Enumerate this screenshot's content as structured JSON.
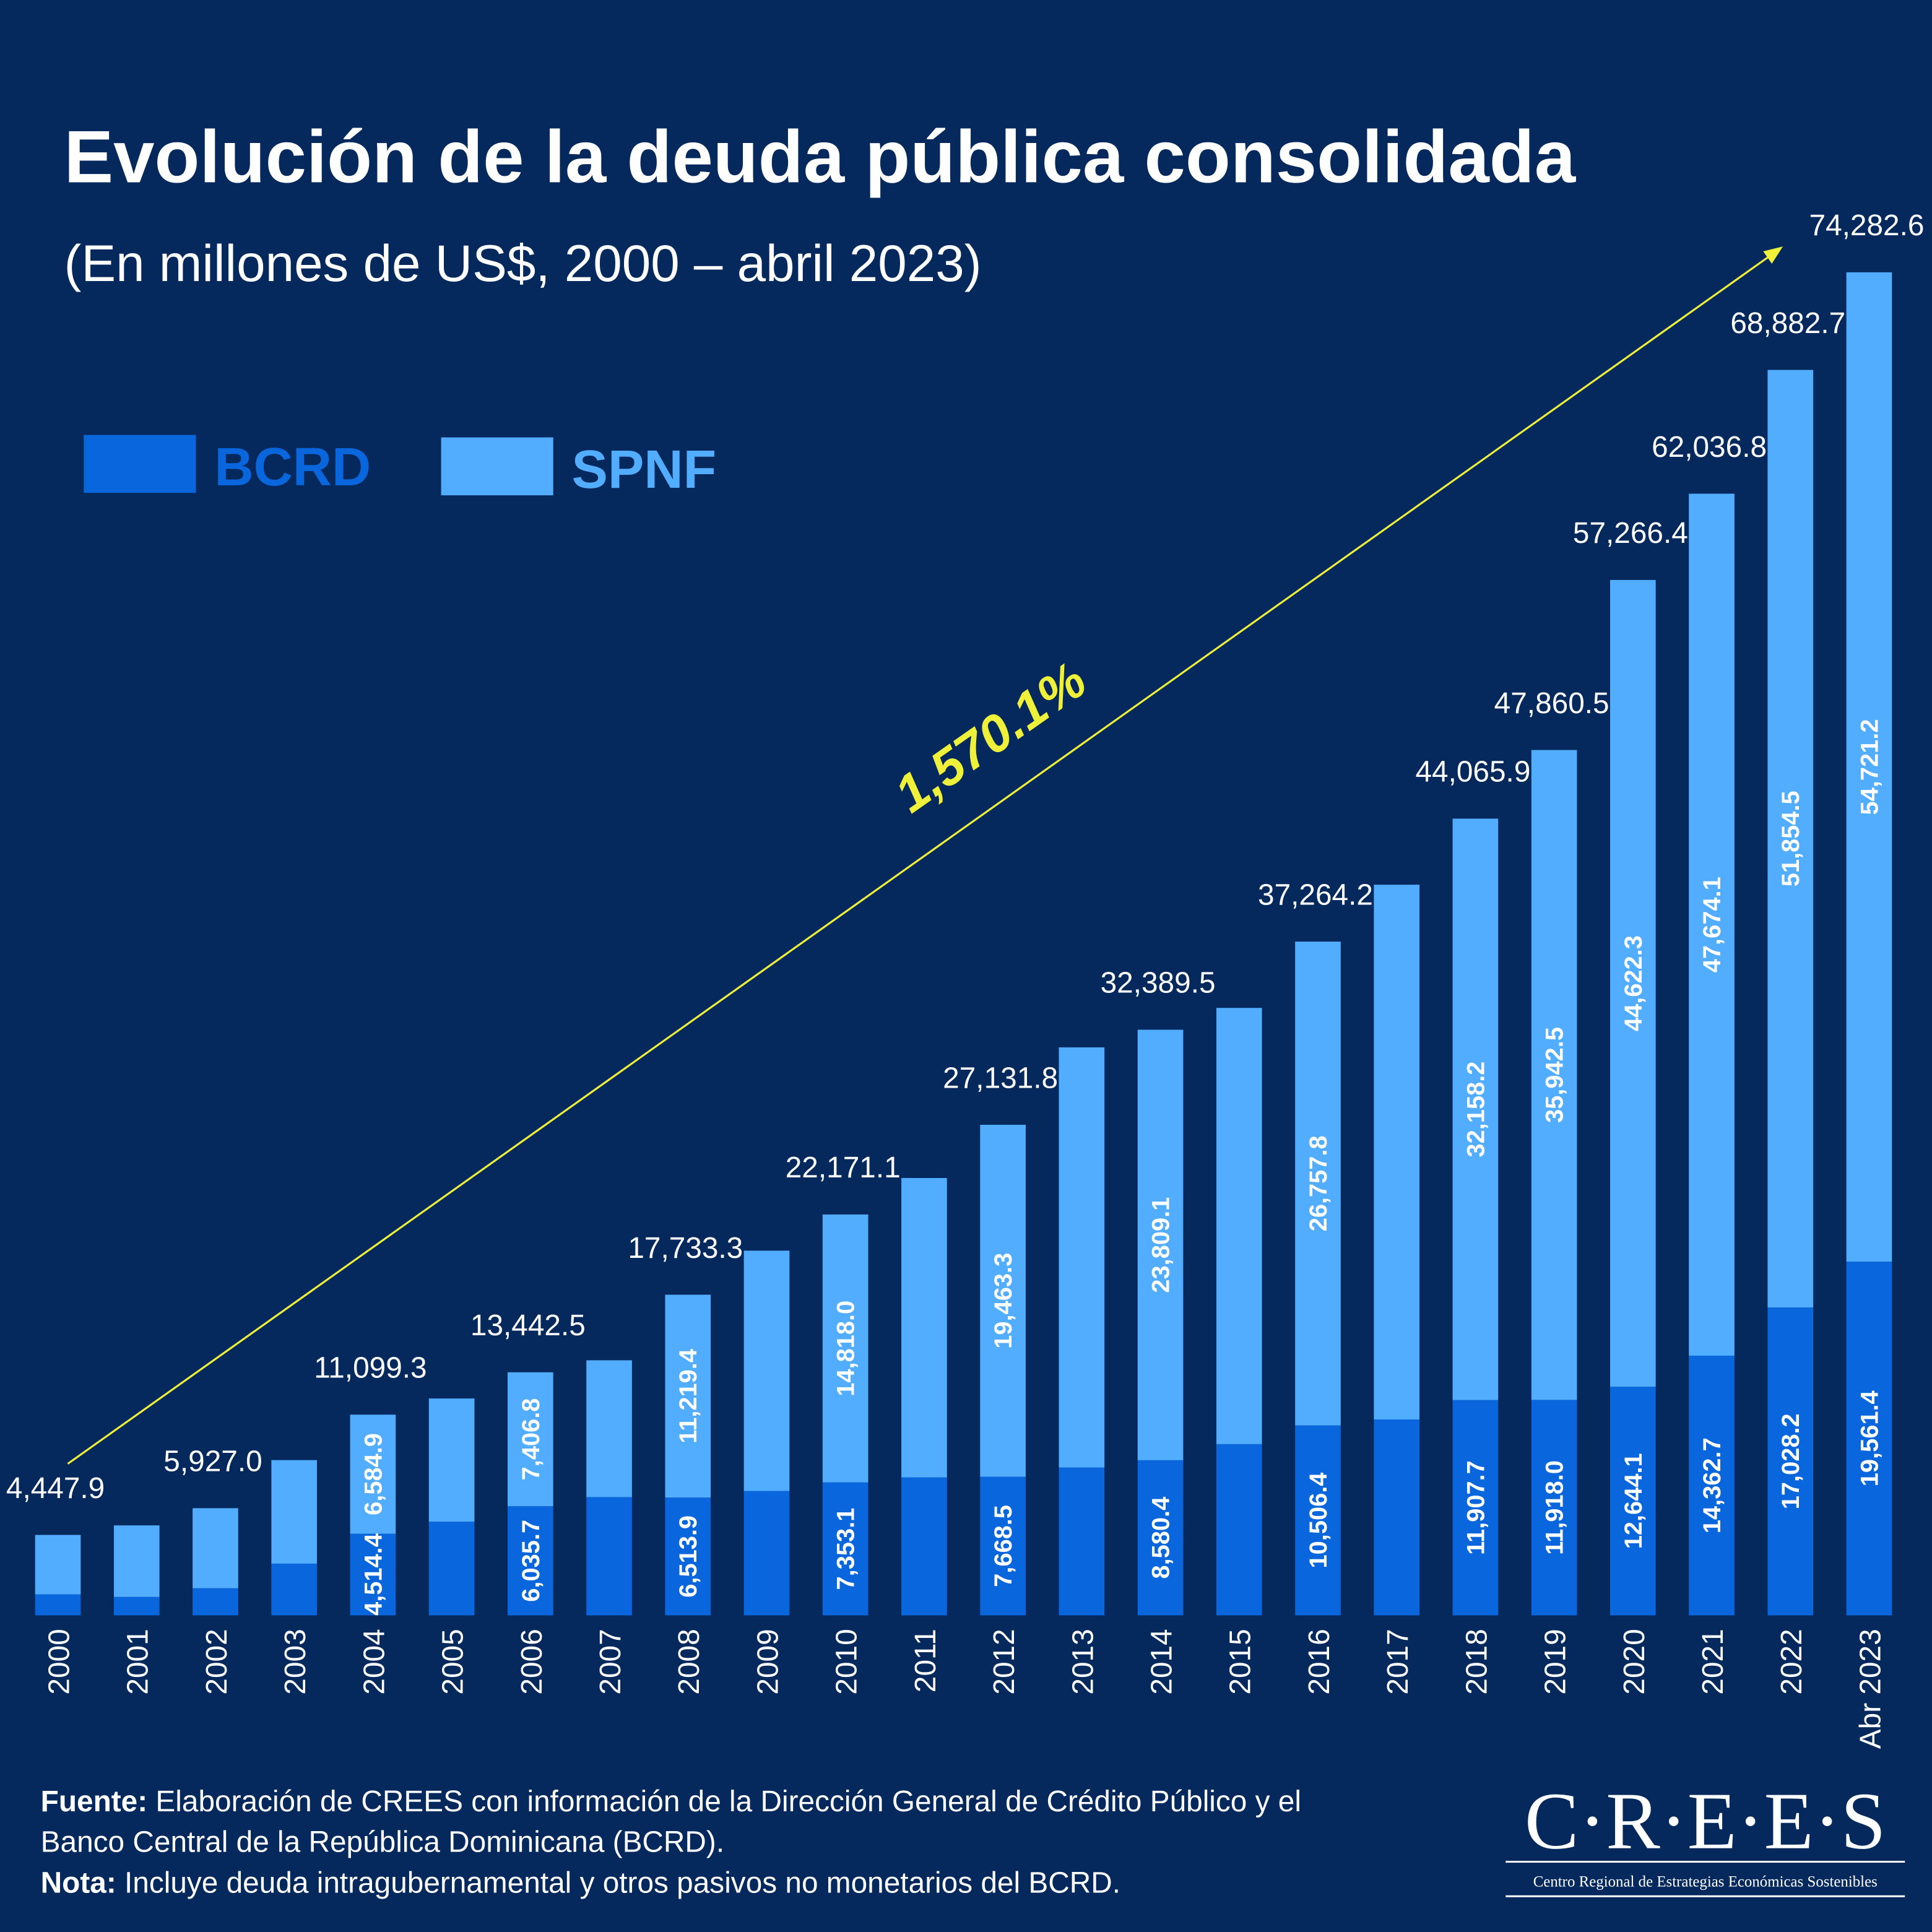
{
  "title": "Evolución de la deuda pública consolidada",
  "subtitle": "(En millones de US$, 2000 – abril 2023)",
  "legend": [
    {
      "label": "BCRD",
      "color": "#0a66dd"
    },
    {
      "label": "SPNF",
      "color": "#52adff"
    }
  ],
  "growth_annotation": "1,570.1%",
  "colors": {
    "background": "#05295c",
    "bcrd": "#0a66dd",
    "spnf": "#52adff",
    "arrow": "#eef03a"
  },
  "chart_data": {
    "type": "bar",
    "stacked": true,
    "categories": [
      "2000",
      "2001",
      "2002",
      "2003",
      "2004",
      "2005",
      "2006",
      "2007",
      "2008",
      "2009",
      "2010",
      "2011",
      "2012",
      "2013",
      "2014",
      "2015",
      "2016",
      "2017",
      "2018",
      "2019",
      "2020",
      "2021",
      "2022",
      "Abr 2023"
    ],
    "series": [
      {
        "name": "BCRD",
        "values": [
          1160,
          1020,
          1500,
          2860,
          4514.4,
          5180,
          6035.7,
          6540,
          6513.9,
          6880,
          7353.1,
          7630,
          7668.5,
          8180,
          8580.4,
          9470,
          10506.4,
          10835,
          11907.7,
          11918.0,
          12644.1,
          14362.7,
          17028.2,
          19561.4
        ]
      },
      {
        "name": "SPNF",
        "values": [
          3287.9,
          3955,
          4427.0,
          5727,
          6584.9,
          6814,
          7406.8,
          7567,
          11219.4,
          13291,
          14818.0,
          16560,
          19463.3,
          23235,
          23809.1,
          24127,
          26757.8,
          29576,
          32158.2,
          35942.5,
          44622.3,
          47674.1,
          51854.5,
          54721.2
        ]
      }
    ],
    "segment_labels_shown": [
      false,
      false,
      false,
      false,
      true,
      false,
      true,
      false,
      true,
      false,
      true,
      false,
      true,
      false,
      true,
      false,
      true,
      false,
      true,
      true,
      true,
      true,
      true,
      true
    ],
    "segment_labels": {
      "BCRD": [
        "",
        "",
        "",
        "",
        "4,514.4",
        "",
        "6,035.7",
        "",
        "6,513.9",
        "",
        "7,353.1",
        "",
        "7,668.5",
        "",
        "8,580.4",
        "",
        "10,506.4",
        "",
        "11,907.7",
        "11,918.0",
        "12,644.1",
        "14,362.7",
        "17,028.2",
        "19,561.4"
      ],
      "SPNF": [
        "",
        "",
        "",
        "",
        "6,584.9",
        "",
        "7,406.8",
        "",
        "11,219.4",
        "",
        "14,818.0",
        "",
        "19,463.3",
        "",
        "23,809.1",
        "",
        "26,757.8",
        "",
        "32,158.2",
        "35,942.5",
        "44,622.3",
        "47,674.1",
        "51,854.5",
        "54,721.2"
      ]
    },
    "total_labels": [
      "4,447.9",
      "",
      "5,927.0",
      "",
      "11,099.3",
      "",
      "13,442.5",
      "",
      "17,733.3",
      "",
      "22,171.1",
      "",
      "27,131.8",
      "",
      "32,389.5",
      "",
      "37,264.2",
      "",
      "44,065.9",
      "47,860.5",
      "57,266.4",
      "62,036.8",
      "68,882.7",
      "74,282.6"
    ],
    "ylim": [
      0,
      75000
    ],
    "grid": false,
    "legend_position": "top-left"
  },
  "footer": {
    "source_label": "Fuente:",
    "source_text_1": " Elaboración de CREES con información de la Dirección General de Crédito Público y el",
    "source_text_2": "Banco Central de la República Dominicana (BCRD).",
    "note_label": "Nota:",
    "note_text": " Incluye deuda intragubernamental y otros pasivos no monetarios del BCRD."
  },
  "logo": {
    "name": "C·R·E·E·S",
    "tagline": "Centro Regional de Estrategias Económicas Sostenibles"
  }
}
